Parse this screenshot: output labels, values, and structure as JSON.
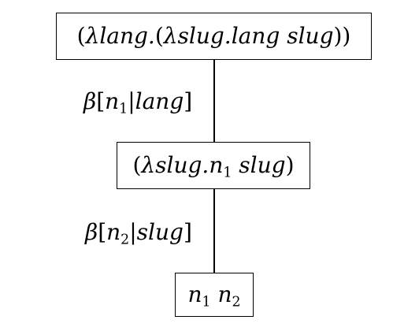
{
  "nodes": [
    {
      "parts": [
        {
          "t": "(",
          "s": "up"
        },
        {
          "t": "λlang.",
          "s": "term"
        },
        {
          "t": "(",
          "s": "up"
        },
        {
          "t": "λslug.lang slug",
          "s": "term"
        },
        {
          "t": "))",
          "s": "up"
        }
      ]
    },
    {
      "parts": [
        {
          "t": "(",
          "s": "up"
        },
        {
          "t": "λslug.n",
          "s": "term"
        },
        {
          "t": "1",
          "s": "sub"
        },
        {
          "t": " slug",
          "s": "term"
        },
        {
          "t": ")",
          "s": "up"
        }
      ]
    },
    {
      "parts": [
        {
          "t": "n",
          "s": "term"
        },
        {
          "t": "1",
          "s": "sub"
        },
        {
          "t": " n",
          "s": "term"
        },
        {
          "t": "2",
          "s": "sub"
        }
      ]
    }
  ],
  "edges": [
    {
      "parts": [
        {
          "t": "β",
          "s": "term"
        },
        {
          "t": "[",
          "s": "up"
        },
        {
          "t": "n",
          "s": "term"
        },
        {
          "t": "1",
          "s": "sub"
        },
        {
          "t": "|",
          "s": "up"
        },
        {
          "t": "lang",
          "s": "term"
        },
        {
          "t": "]",
          "s": "up"
        }
      ]
    },
    {
      "parts": [
        {
          "t": "β",
          "s": "term"
        },
        {
          "t": "[",
          "s": "up"
        },
        {
          "t": "n",
          "s": "term"
        },
        {
          "t": "2",
          "s": "sub"
        },
        {
          "t": "|",
          "s": "up"
        },
        {
          "t": "slug",
          "s": "term"
        },
        {
          "t": "]",
          "s": "up"
        }
      ]
    }
  ]
}
